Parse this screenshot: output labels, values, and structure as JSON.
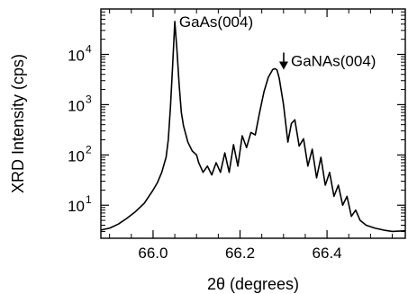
{
  "chart_data": {
    "type": "line",
    "title": "",
    "xlabel": "2θ (degrees)",
    "ylabel": "XRD Intensity (cps)",
    "x_scale": "linear",
    "y_scale": "log",
    "xlim": [
      65.88,
      66.58
    ],
    "ylim": [
      2.2,
      80000
    ],
    "x_ticks": [
      {
        "value": 66.0,
        "label": "66.0"
      },
      {
        "value": 66.2,
        "label": "66.2"
      },
      {
        "value": 66.4,
        "label": "66.4"
      }
    ],
    "y_ticks": [
      {
        "value": 10,
        "base": "10",
        "exp": "1"
      },
      {
        "value": 100,
        "base": "10",
        "exp": "2"
      },
      {
        "value": 1000,
        "base": "10",
        "exp": "3"
      },
      {
        "value": 10000,
        "base": "10",
        "exp": "4"
      }
    ],
    "grid": false,
    "series": [
      {
        "name": "",
        "x": [
          65.88,
          65.9,
          65.92,
          65.94,
          65.96,
          65.98,
          66.0,
          66.01,
          66.02,
          66.03,
          66.035,
          66.04,
          66.045,
          66.05,
          66.055,
          66.06,
          66.065,
          66.07,
          66.08,
          66.09,
          66.1,
          66.105,
          66.115,
          66.125,
          66.135,
          66.145,
          66.155,
          66.165,
          66.175,
          66.185,
          66.195,
          66.205,
          66.215,
          66.225,
          66.235,
          66.245,
          66.255,
          66.265,
          66.275,
          66.28,
          66.285,
          66.29,
          66.3,
          66.31,
          66.318,
          66.326,
          66.336,
          66.346,
          66.356,
          66.366,
          66.376,
          66.386,
          66.396,
          66.406,
          66.416,
          66.426,
          66.436,
          66.446,
          66.456,
          66.466,
          66.476,
          66.49,
          66.51,
          66.53,
          66.55,
          66.58
        ],
        "y": [
          3.2,
          3.5,
          4.2,
          5.5,
          7.5,
          11,
          20,
          28,
          45,
          90,
          200,
          900,
          6000,
          45000,
          12000,
          2500,
          700,
          380,
          180,
          120,
          100,
          70,
          45,
          60,
          40,
          70,
          45,
          110,
          45,
          160,
          60,
          240,
          140,
          280,
          250,
          700,
          1800,
          3500,
          5000,
          5200,
          4900,
          3400,
          1000,
          180,
          420,
          500,
          150,
          210,
          60,
          130,
          35,
          90,
          25,
          45,
          15,
          25,
          10,
          15,
          6,
          8,
          5,
          4,
          3.5,
          3.2,
          3,
          3.1
        ]
      }
    ],
    "annotations": [
      {
        "text": "GaAs(004)",
        "x": 66.06,
        "y": 35000
      },
      {
        "text": "GaNAs(004)",
        "x": 66.29,
        "y": 7200,
        "arrow": true
      }
    ]
  }
}
